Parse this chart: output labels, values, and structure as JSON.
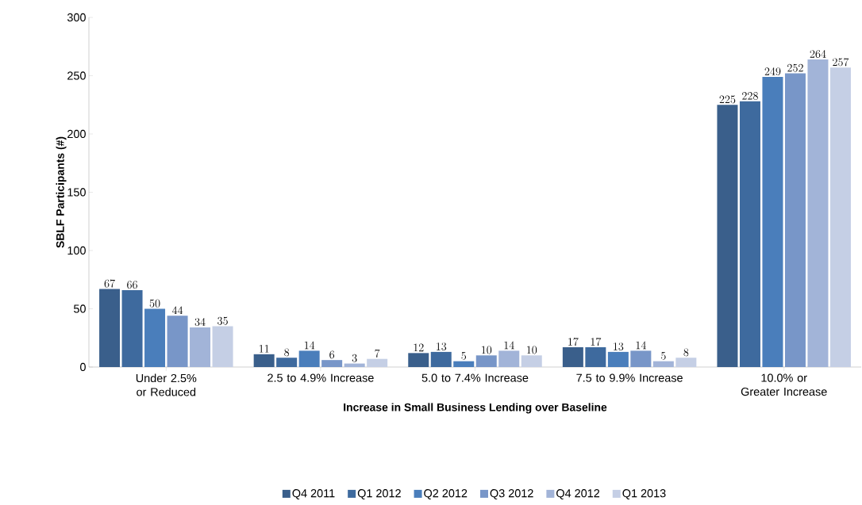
{
  "chart_data": {
    "type": "bar",
    "xlabel": "Increase in Small Business Lending over Baseline",
    "ylabel": "SBLF Participants (#)",
    "categories": [
      "Under 2.5% or Reduced",
      "2.5 to 4.9% Increase",
      "5.0 to 7.4% Increase",
      "7.5 to 9.9% Increase",
      "10.0% or Greater Increase"
    ],
    "series": [
      {
        "name": "Q4 2011",
        "color": "#3a5f8b",
        "values": [
          67,
          11,
          12,
          17,
          225
        ]
      },
      {
        "name": "Q1 2012",
        "color": "#3e6a9e",
        "values": [
          66,
          8,
          13,
          17,
          228
        ]
      },
      {
        "name": "Q2 2012",
        "color": "#4a7ebb",
        "values": [
          50,
          14,
          5,
          13,
          249
        ]
      },
      {
        "name": "Q3 2012",
        "color": "#7896c8",
        "values": [
          44,
          6,
          10,
          14,
          252
        ]
      },
      {
        "name": "Q4 2012",
        "color": "#a2b4d8",
        "values": [
          34,
          3,
          14,
          5,
          264
        ]
      },
      {
        "name": "Q1 2013",
        "color": "#c5cfe5",
        "values": [
          35,
          7,
          10,
          8,
          257
        ]
      }
    ],
    "ylim": [
      0,
      300
    ],
    "yticks": [
      0,
      50,
      100,
      150,
      200,
      250,
      300
    ],
    "data_labels": true,
    "grid": false,
    "legend": "bottom"
  }
}
